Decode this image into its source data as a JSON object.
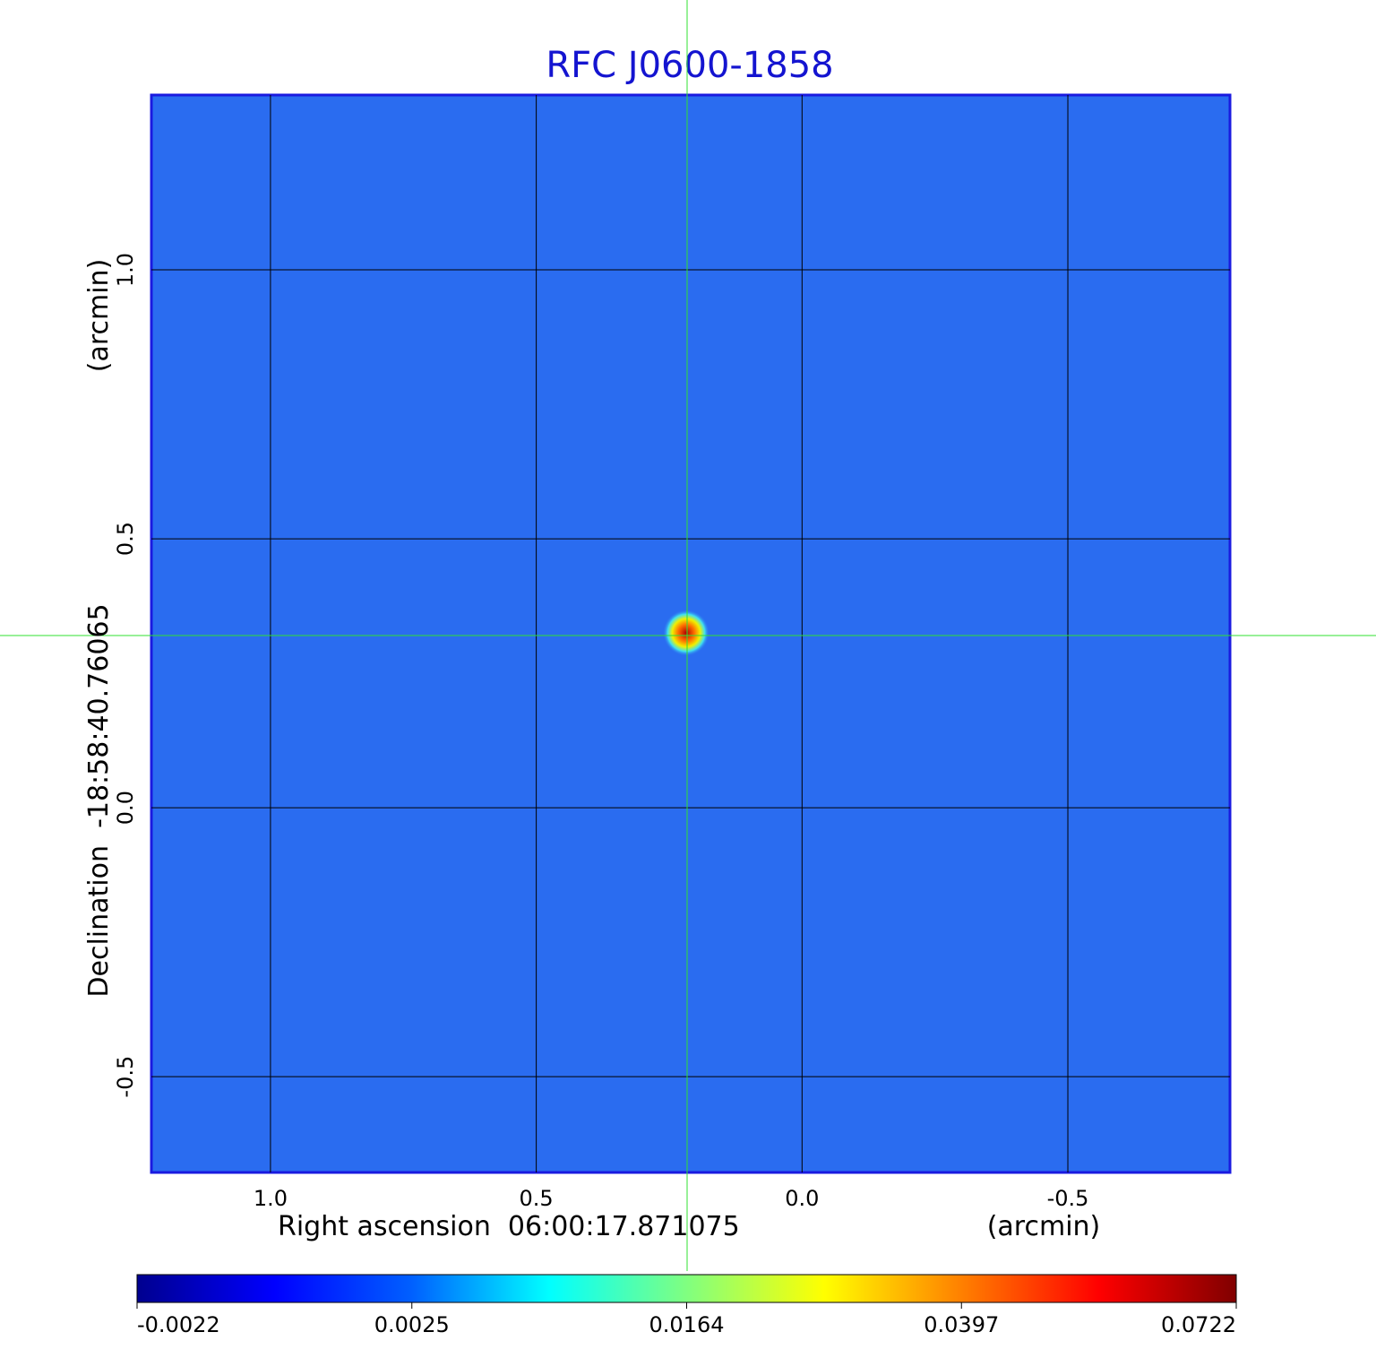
{
  "chart_data": {
    "type": "image",
    "title": "RFC J0600-1858",
    "x_label": "Right ascension  06:00:17.871075",
    "x_unit": "(arcmin)",
    "y_label": "Declination  -18:58:40.76065",
    "y_unit": "(arcmin)",
    "xlim": [
      1.224,
      -0.805
    ],
    "ylim": [
      -0.678,
      1.325
    ],
    "xticks": [
      {
        "value": 1,
        "label": "1.0"
      },
      0.5,
      {
        "value": 0,
        "label": "0.0"
      },
      -0.5
    ],
    "yticks": [
      {
        "value": 1,
        "label": "1.0"
      },
      0.5,
      {
        "value": 0,
        "label": "0.0"
      },
      -0.5
    ],
    "grid": true,
    "colormap": "jet",
    "colorbar_ticks": [
      -0.0022,
      0.0025,
      0.0164,
      0.0397,
      0.0722
    ]
  }
}
